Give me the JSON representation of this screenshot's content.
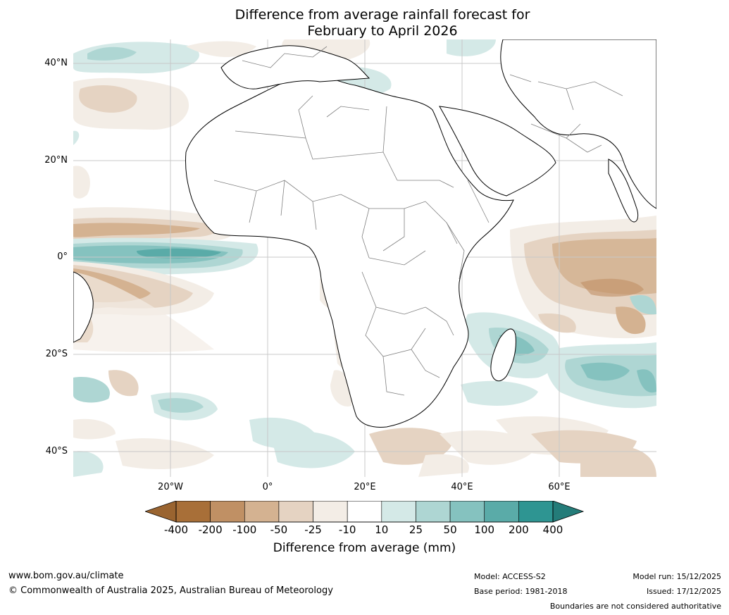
{
  "title_line1": "Difference from average rainfall forecast for",
  "title_line2": "February to April 2026",
  "lat_labels": [
    "40°N",
    "20°N",
    "0°",
    "20°S",
    "40°S"
  ],
  "lon_labels": [
    "20°W",
    "0°",
    "20°E",
    "40°E",
    "60°E"
  ],
  "colorbar": {
    "ticks": [
      "-400",
      "-200",
      "-100",
      "-50",
      "-25",
      "-10",
      "10",
      "25",
      "50",
      "100",
      "200",
      "400"
    ],
    "colors": [
      "#a86f38",
      "#c09064",
      "#d4b291",
      "#e5d3c2",
      "#f3ede6",
      "#ffffff",
      "#d4e9e7",
      "#aed6d3",
      "#85c2bf",
      "#5aaba8",
      "#2e9592"
    ],
    "min_extend_color": "#9a6430",
    "max_extend_color": "#247c79",
    "label": "Difference from average (mm)"
  },
  "footer": {
    "url": "www.bom.gov.au/climate",
    "copyright": "© Commonwealth of Australia 2025, Australian Bureau of Meteorology",
    "model": "Model: ACCESS-S2",
    "base_period": "Base period: 1981-2018",
    "model_run": "Model run: 15/12/2025",
    "issued": "Issued: 17/12/2025",
    "disclaimer": "Boundaries are not considered authoritative"
  }
}
